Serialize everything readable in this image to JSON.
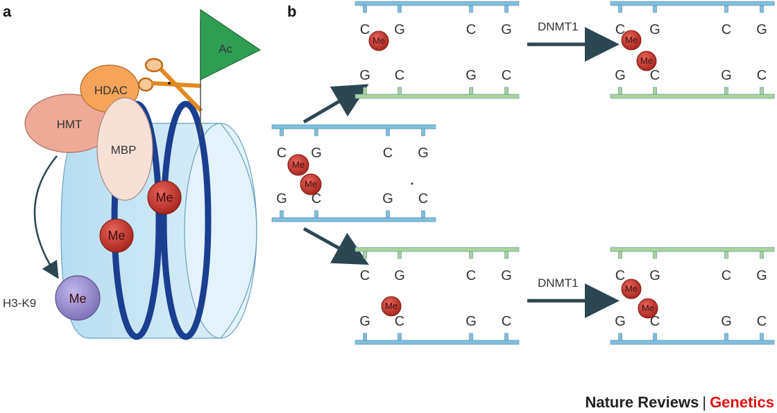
{
  "panel_a": {
    "label": "a",
    "hmt": "HMT",
    "hdac": "HDAC",
    "mbp": "MBP",
    "acetyl": "Ac",
    "methyl": "Me",
    "h3k9": "H3-K9"
  },
  "panel_b": {
    "label": "b",
    "enzyme_top": "DNMT1",
    "enzyme_bottom": "DNMT1",
    "methyl": "Me",
    "base_c": "C",
    "base_g": "G"
  },
  "credit": {
    "journal": "Nature Reviews",
    "separator": "|",
    "section": "Genetics"
  },
  "colors": {
    "dna_blue": "#7fbfe0",
    "dna_green": "#a9d49a",
    "methyl_red": "#c9382e",
    "nucleosome": "#cfe9f7",
    "dna_wrap": "#1a3f8f",
    "hmt": "#eeaa98",
    "hdac": "#f5a45a",
    "mbp": "#f7e1d6",
    "acetyl": "#2f9e52",
    "h3k9": "#9a8fcf",
    "arrow": "#2c4652",
    "credit_red": "#e01010"
  }
}
